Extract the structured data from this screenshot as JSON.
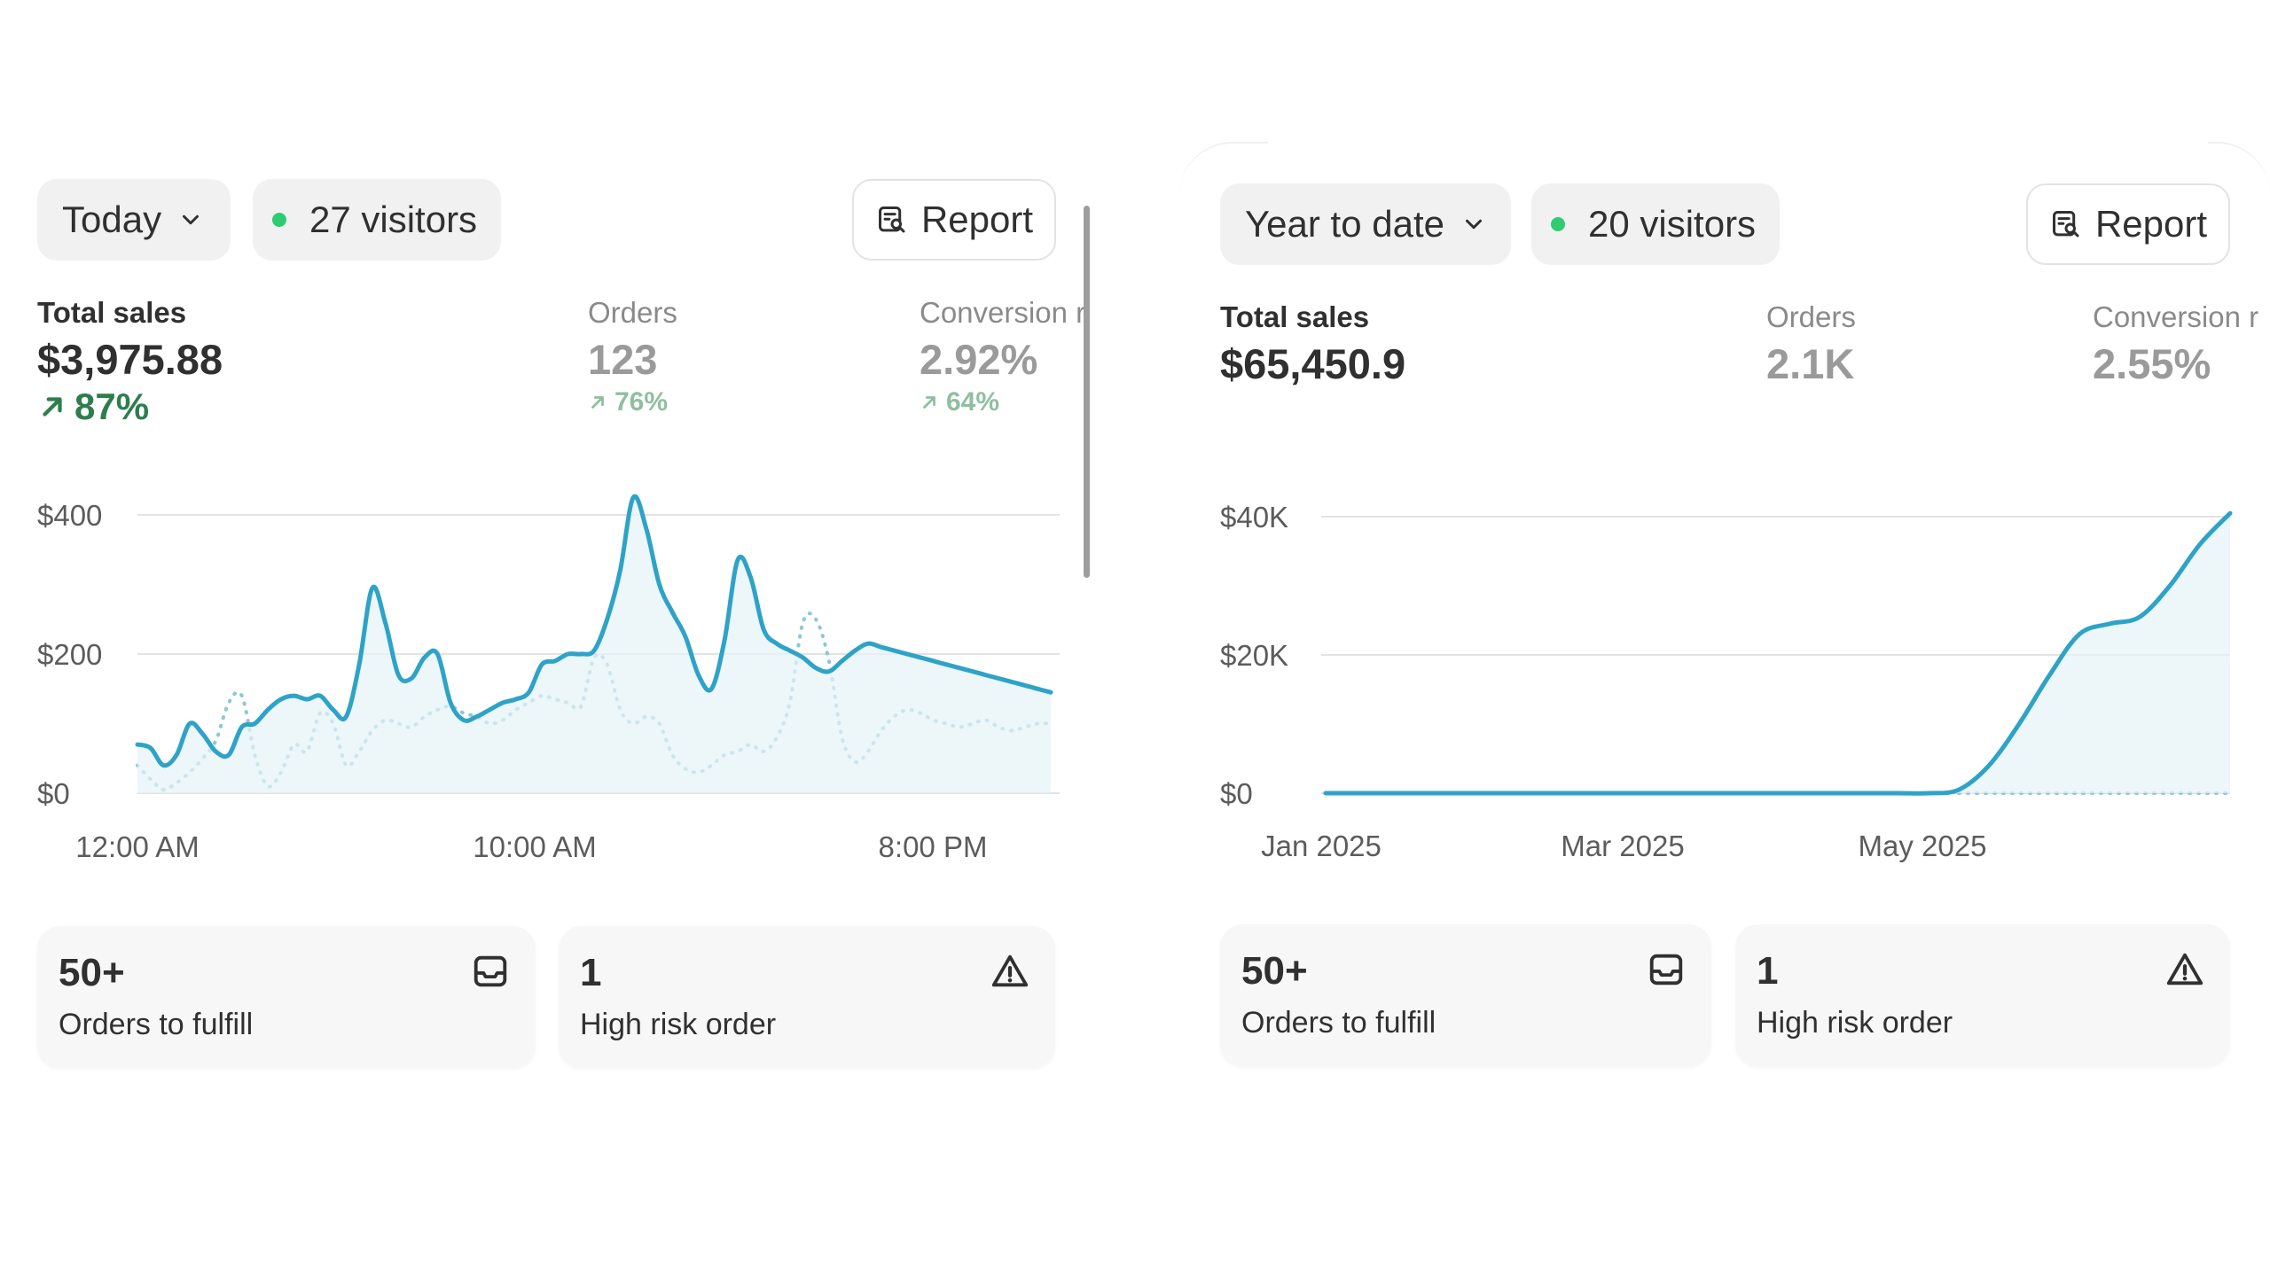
{
  "left": {
    "period": "Today",
    "visitors": "27 visitors",
    "report_label": "Report",
    "metrics": {
      "total_sales_label": "Total sales",
      "total_sales_value": "$3,975.88",
      "total_sales_delta": "87%",
      "orders_label": "Orders",
      "orders_value": "123",
      "orders_delta": "76%",
      "conversion_label": "Conversion r",
      "conversion_value": "2.92%",
      "conversion_delta": "64%"
    },
    "cards": [
      {
        "value": "50+",
        "label": "Orders to fulfill",
        "icon": "inbox-icon"
      },
      {
        "value": "1",
        "label": "High risk order",
        "icon": "warning-icon"
      }
    ]
  },
  "right": {
    "period": "Year to date",
    "visitors": "20 visitors",
    "report_label": "Report",
    "metrics": {
      "total_sales_label": "Total sales",
      "total_sales_value": "$65,450.9",
      "orders_label": "Orders",
      "orders_value": "2.1K",
      "conversion_label": "Conversion r",
      "conversion_value": "2.55%"
    },
    "cards": [
      {
        "value": "50+",
        "label": "Orders to fulfill",
        "icon": "inbox-icon"
      },
      {
        "value": "1",
        "label": "High risk order",
        "icon": "warning-icon"
      }
    ]
  },
  "colors": {
    "line": "#2ea3c7",
    "line_fill": "#e6f2f7",
    "compare_line": "#8cc7d8",
    "grid": "#e3e3e3",
    "positive": "#2e7d4f",
    "positive_muted": "#8fbf9f",
    "status_dot": "#2ecc71"
  },
  "chart_data": [
    {
      "type": "line",
      "x_ticks": [
        "12:00 AM",
        "10:00 AM",
        "8:00 PM"
      ],
      "y_ticks": [
        "$400",
        "$200",
        "$0"
      ],
      "ylim": [
        0,
        400
      ],
      "grid": true,
      "series": [
        {
          "style": "solid",
          "x": [
            0,
            1,
            2,
            3,
            4,
            5,
            6,
            7,
            8,
            9,
            10,
            11,
            12,
            13,
            14,
            15,
            16,
            17,
            18,
            19,
            20,
            21,
            22,
            23,
            24,
            25,
            26,
            27,
            28,
            29,
            30,
            31,
            32,
            33,
            34,
            35,
            36,
            37,
            38,
            39,
            40,
            41,
            42,
            43,
            44,
            45,
            46,
            47,
            48,
            49,
            50,
            51,
            52,
            53,
            54,
            55,
            56,
            57,
            58,
            59,
            60,
            61,
            62,
            63,
            64,
            65,
            66,
            67,
            68,
            69,
            70
          ],
          "y": [
            70,
            65,
            40,
            55,
            100,
            85,
            60,
            55,
            95,
            100,
            120,
            135,
            140,
            135,
            140,
            120,
            110,
            185,
            295,
            245,
            170,
            165,
            195,
            200,
            130,
            105,
            110,
            120,
            130,
            135,
            145,
            185,
            190,
            200,
            200,
            205,
            250,
            320,
            425,
            380,
            300,
            260,
            225,
            170,
            150,
            220,
            335,
            310,
            235,
            215,
            205,
            195,
            180,
            175,
            190,
            205,
            215,
            210,
            205,
            200,
            195,
            190,
            185,
            180,
            175,
            170,
            165,
            160,
            155,
            150,
            145
          ]
        },
        {
          "style": "dotted",
          "x": [
            0,
            1,
            2,
            3,
            4,
            5,
            6,
            7,
            8,
            9,
            10,
            11,
            12,
            13,
            14,
            15,
            16,
            17,
            18,
            19,
            20,
            21,
            22,
            23,
            24,
            25,
            26,
            27,
            28,
            29,
            30,
            31,
            32,
            33,
            34,
            35,
            36,
            37,
            38,
            39,
            40,
            41,
            42,
            43,
            44,
            45,
            46,
            47,
            48,
            49,
            50,
            51,
            52,
            53,
            54,
            55,
            56,
            57,
            58,
            59,
            60,
            61,
            62,
            63,
            64,
            65,
            66,
            67,
            68,
            69,
            70
          ],
          "y": [
            40,
            20,
            5,
            15,
            30,
            50,
            75,
            130,
            140,
            55,
            10,
            30,
            70,
            60,
            115,
            100,
            40,
            60,
            90,
            105,
            100,
            95,
            110,
            120,
            125,
            115,
            110,
            100,
            105,
            120,
            130,
            140,
            135,
            130,
            125,
            195,
            185,
            120,
            100,
            110,
            100,
            55,
            35,
            30,
            40,
            55,
            60,
            70,
            60,
            80,
            130,
            245,
            250,
            190,
            80,
            45,
            60,
            90,
            110,
            120,
            115,
            105,
            100,
            95,
            100,
            105,
            95,
            90,
            95,
            100,
            100
          ]
        }
      ]
    },
    {
      "type": "line",
      "x_ticks": [
        "Jan 2025",
        "Mar 2025",
        "May 2025"
      ],
      "y_ticks": [
        "$40K",
        "$20K",
        "$0"
      ],
      "ylim": [
        0,
        40000
      ],
      "grid": true,
      "series": [
        {
          "style": "solid",
          "x": [
            0,
            1,
            2,
            3,
            4,
            5,
            6,
            7,
            8,
            9,
            10,
            11,
            12,
            13,
            14,
            15,
            16,
            17,
            18,
            19,
            20,
            21,
            22,
            23,
            24,
            25,
            26,
            27,
            28,
            29,
            30
          ],
          "y": [
            0,
            0,
            0,
            0,
            0,
            0,
            0,
            0,
            0,
            0,
            0,
            0,
            0,
            0,
            0,
            0,
            0,
            0,
            0,
            0,
            0,
            500,
            4000,
            10000,
            17000,
            23000,
            24500,
            25500,
            30000,
            36000,
            40500
          ]
        },
        {
          "style": "dotted",
          "x": [
            21,
            22,
            23,
            24,
            25,
            26,
            27,
            28,
            29,
            30
          ],
          "y": [
            0,
            0,
            0,
            0,
            0,
            0,
            0,
            0,
            0,
            0
          ]
        }
      ]
    }
  ]
}
